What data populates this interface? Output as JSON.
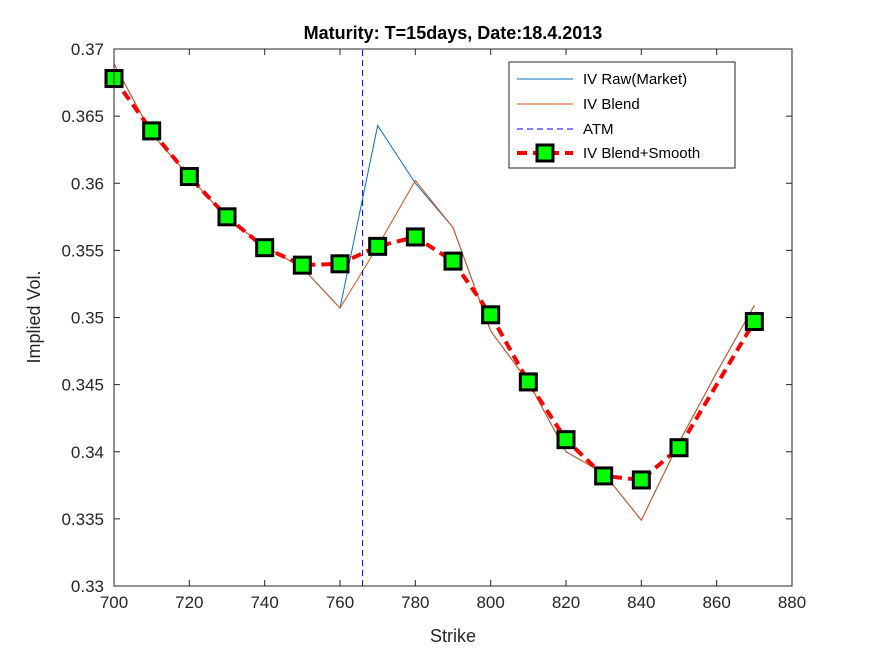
{
  "chart_data": {
    "type": "line",
    "title": "Maturity: T=15days, Date:18.4.2013",
    "xlabel": "Strike",
    "ylabel": "Implied Vol.",
    "xlim": [
      700,
      880
    ],
    "ylim": [
      0.33,
      0.37
    ],
    "xticks": [
      "700",
      "720",
      "740",
      "760",
      "780",
      "800",
      "820",
      "840",
      "860",
      "880"
    ],
    "yticks": [
      "0.33",
      "0.335",
      "0.34",
      "0.345",
      "0.35",
      "0.355",
      "0.36",
      "0.365",
      "0.37"
    ],
    "grid": false,
    "legend_position": "top-right",
    "series": [
      {
        "name": "IV Raw(Market)",
        "color": "#0072BD",
        "style": "solid",
        "x": [
          700,
          710,
          720,
          730,
          740,
          750,
          760,
          770,
          780,
          790,
          800,
          810,
          820,
          830,
          840,
          850,
          860,
          870
        ],
        "y": [
          0.3689,
          0.3637,
          0.3605,
          0.3574,
          0.3553,
          0.3537,
          0.3507,
          0.3643,
          0.36,
          0.3567,
          0.349,
          0.3452,
          0.34,
          0.3384,
          0.3349,
          0.3407,
          0.3459,
          0.3509
        ]
      },
      {
        "name": "IV Blend",
        "color": "#D95319",
        "style": "solid",
        "x": [
          700,
          710,
          720,
          730,
          740,
          750,
          760,
          770,
          780,
          790,
          800,
          810,
          820,
          830,
          840,
          850,
          860,
          870
        ],
        "y": [
          0.3689,
          0.3637,
          0.3605,
          0.3574,
          0.3553,
          0.3537,
          0.3507,
          0.3553,
          0.3602,
          0.3567,
          0.349,
          0.3452,
          0.34,
          0.3384,
          0.3349,
          0.3407,
          0.3459,
          0.3509
        ]
      },
      {
        "name": "ATM",
        "color": "#0000FF",
        "style": "dashed",
        "x": [
          766,
          766
        ],
        "y": [
          0.33,
          0.37
        ]
      },
      {
        "name": "IV Blend+Smooth",
        "color": "#FF0000",
        "marker_color": "#00FF00",
        "style": "dashed-markers",
        "x": [
          700,
          710,
          720,
          730,
          740,
          750,
          760,
          770,
          780,
          790,
          800,
          810,
          820,
          830,
          840,
          850,
          870
        ],
        "y": [
          0.3678,
          0.3639,
          0.3605,
          0.3575,
          0.3552,
          0.3539,
          0.354,
          0.3553,
          0.356,
          0.3542,
          0.3502,
          0.3452,
          0.3409,
          0.3382,
          0.3379,
          0.3403,
          0.3497
        ]
      }
    ]
  }
}
